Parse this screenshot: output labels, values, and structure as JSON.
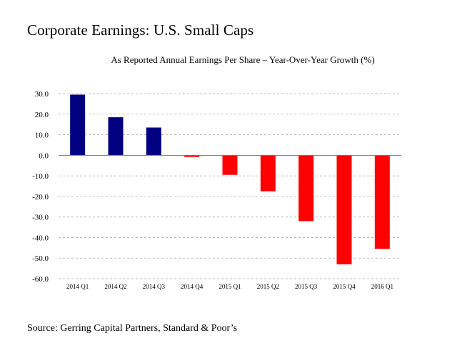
{
  "title": "Corporate Earnings: U.S. Small Caps",
  "source": "Source: Gerring Capital Partners, Standard & Poor’s",
  "colors": {
    "positive": "#000080",
    "negative": "#ff0000",
    "grid": "#aaaaaa",
    "axis": "#777777"
  },
  "chart_data": {
    "type": "bar",
    "title": "As Reported Annual Earnings Per Share – Year-Over-Year Growth (%)",
    "xlabel": "",
    "ylabel": "",
    "ylim": [
      -60,
      30
    ],
    "yticks": [
      30,
      20,
      10,
      0,
      -10,
      -20,
      -30,
      -40,
      -50,
      -60
    ],
    "ytick_labels": [
      "30.0",
      "20.0",
      "10.0",
      "0.0",
      "-10.0",
      "-20.0",
      "-30.0",
      "-40.0",
      "-50.0",
      "-60.0"
    ],
    "grid": true,
    "legend": "none",
    "categories": [
      "2014 Q1",
      "2014 Q2",
      "2014 Q3",
      "2014 Q4",
      "2015 Q1",
      "2015 Q2",
      "2015 Q3",
      "2015 Q4",
      "2016 Q1"
    ],
    "values": [
      29.5,
      18.5,
      13.5,
      -0.8,
      -9.5,
      -17.5,
      -32.0,
      -53.0,
      -45.5
    ]
  }
}
